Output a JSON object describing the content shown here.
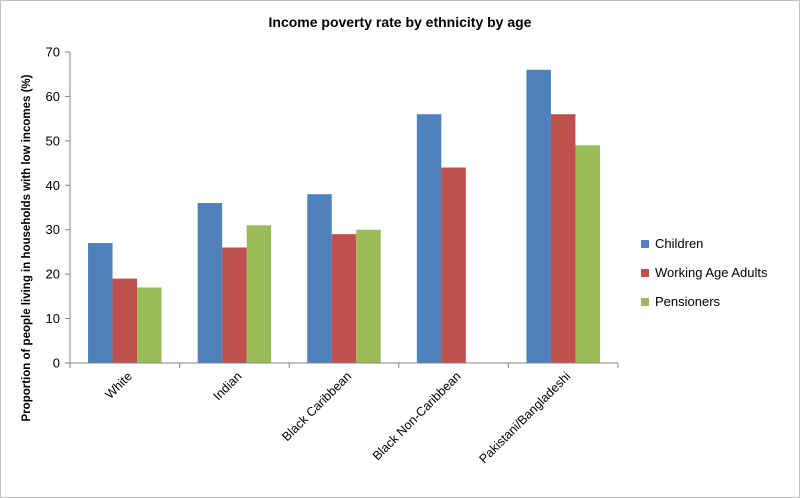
{
  "chart_data": {
    "type": "bar",
    "title": "Income poverty rate by ethnicity by age",
    "xlabel": "",
    "ylabel": "Proportion of people living in households with low incomes (%)",
    "ylim": [
      0,
      70
    ],
    "yticks": [
      0,
      10,
      20,
      30,
      40,
      50,
      60,
      70
    ],
    "grid": false,
    "legend": "right",
    "categories": [
      "White",
      "Indian",
      "Black Caribbean",
      "Black Non-Caribbean",
      "Pakistani/Bangladeshi"
    ],
    "series": [
      {
        "name": "Children",
        "color": "#4f81bd",
        "values": [
          27,
          36,
          38,
          56,
          66
        ]
      },
      {
        "name": "Working Age Adults",
        "color": "#c0504d",
        "values": [
          19,
          26,
          29,
          44,
          56
        ]
      },
      {
        "name": "Pensioners",
        "color": "#9bbb59",
        "values": [
          17,
          31,
          30,
          null,
          49
        ]
      }
    ]
  }
}
